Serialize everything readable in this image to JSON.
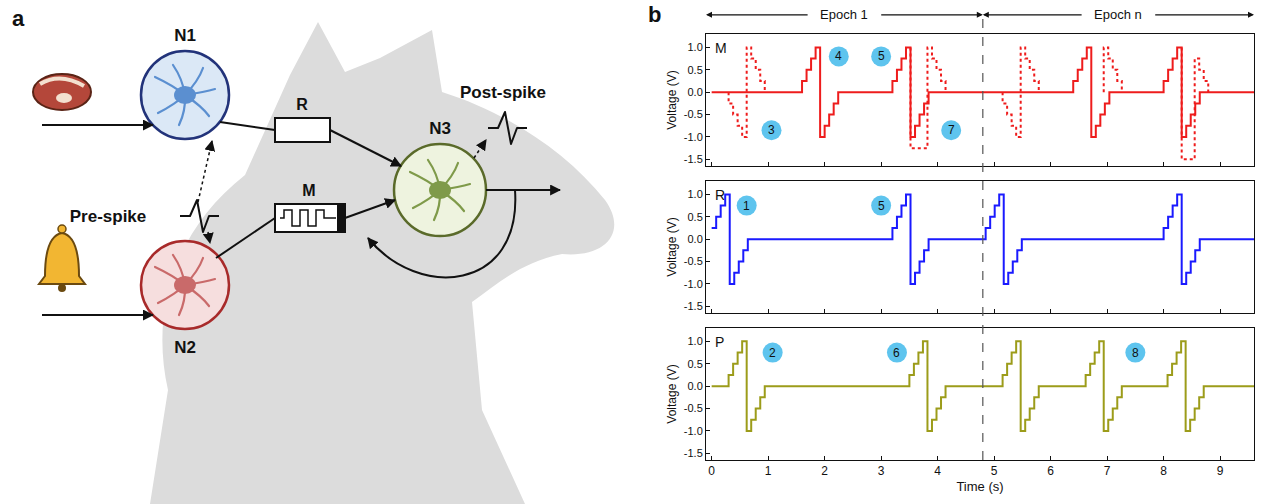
{
  "diagram": {
    "letter": "a",
    "neurons": [
      "N1",
      "N2",
      "N3"
    ],
    "synapses": [
      "R",
      "M"
    ],
    "pre_spike": "Pre-spike",
    "post_spike": "Post-spike"
  },
  "panel_b": {
    "letter": "b",
    "epochs": [
      {
        "label": "Epoch 1",
        "start": -0.1,
        "end": 4.8
      },
      {
        "label": "Epoch n",
        "start": 4.8,
        "end": 9.6
      }
    ],
    "divider": 4.8
  },
  "chart_data": [
    {
      "type": "line",
      "title": "M",
      "y_label": "Voltage (V)",
      "xlim": [
        -0.1,
        9.6
      ],
      "xticks": [
        0,
        1,
        2,
        3,
        4,
        5,
        6,
        7,
        8,
        9
      ],
      "ylim": [
        -1.65,
        1.3
      ],
      "yticks": [
        -1.5,
        {
          "value": -1,
          "label": "-1.0"
        },
        -0.5,
        {
          "value": 0,
          "label": "0.0"
        },
        0.5,
        {
          "value": 1,
          "label": "1.0"
        }
      ],
      "tick_labels": "y",
      "grid": false,
      "series": [
        {
          "color": "#ee1c1c",
          "line_style": "solid",
          "x": [
            0,
            1.6,
            1.68,
            1.76,
            1.84,
            1.92,
            2,
            2.08,
            2.16,
            2.24,
            3.2,
            3.28,
            3.36,
            3.44,
            3.52,
            3.6,
            3.68,
            3.76,
            3.84,
            6.4,
            6.48,
            6.56,
            6.64,
            6.72,
            6.8,
            6.88,
            6.96,
            7.04,
            8,
            8.08,
            8.16,
            8.24,
            8.32,
            8.4,
            8.48,
            8.56,
            8.64,
            9.6
          ],
          "values": [
            0,
            0.25,
            0.5,
            0.75,
            1,
            -1,
            -0.75,
            -0.5,
            -0.25,
            0,
            0.25,
            0.5,
            0.75,
            1,
            -1,
            -0.75,
            -0.5,
            -0.25,
            0,
            0.25,
            0.5,
            0.75,
            1,
            -1,
            -0.75,
            -0.5,
            -0.25,
            0,
            0.25,
            0.5,
            0.75,
            1,
            -1,
            -0.75,
            -0.5,
            -0.25,
            0,
            0
          ]
        },
        {
          "color": "#ee1c1c",
          "line_style": "dotted",
          "x": [
            0.3,
            0.3,
            0.38,
            0.46,
            0.54,
            0.62,
            0.7,
            0.78,
            0.86,
            0.94,
            null,
            3.52,
            3.52,
            3.82,
            3.9,
            3.98,
            4.06,
            4.14,
            null,
            5.15,
            5.15,
            5.23,
            5.31,
            5.39,
            5.47,
            5.55,
            5.63,
            5.71,
            5.79,
            null,
            6.94,
            6.94,
            7.02,
            7.1,
            7.18,
            7.26,
            null,
            8.32,
            8.32,
            8.55,
            8.63,
            8.71,
            8.79
          ],
          "values": [
            0,
            -0.25,
            -0.5,
            -0.75,
            -1,
            1,
            0.75,
            0.5,
            0.25,
            0,
            null,
            1,
            -1.25,
            1,
            0.75,
            0.5,
            0.25,
            0,
            null,
            0,
            -0.25,
            -0.5,
            -0.75,
            -1,
            1,
            0.75,
            0.5,
            0.25,
            0,
            null,
            0,
            1,
            0.75,
            0.5,
            0.25,
            0,
            null,
            1,
            -1.5,
            0.75,
            0.5,
            0.25,
            0
          ]
        }
      ],
      "annotations": [
        {
          "text": "3",
          "x": 1.06,
          "y": -0.85
        },
        {
          "text": "4",
          "x": 2.25,
          "y": 0.8
        },
        {
          "text": "5",
          "x": 3.0,
          "y": 0.8
        },
        {
          "text": "7",
          "x": 4.24,
          "y": -0.85
        }
      ]
    },
    {
      "type": "line",
      "title": "R",
      "y_label": "Voltage (V)",
      "xlim": [
        -0.1,
        9.6
      ],
      "xticks": [
        0,
        1,
        2,
        3,
        4,
        5,
        6,
        7,
        8,
        9
      ],
      "ylim": [
        -1.65,
        1.3
      ],
      "yticks": [
        -1.5,
        {
          "value": -1,
          "label": "-1.0"
        },
        -0.5,
        {
          "value": 0,
          "label": "0.0"
        },
        0.5,
        {
          "value": 1,
          "label": "1.0"
        }
      ],
      "tick_labels": "y",
      "grid": false,
      "series": [
        {
          "color": "#1a1aff",
          "line_style": "solid",
          "x": [
            0,
            0.08,
            0.16,
            0.24,
            0.32,
            0.4,
            0.48,
            0.56,
            0.64,
            3.2,
            3.28,
            3.36,
            3.44,
            3.52,
            3.6,
            3.68,
            3.76,
            3.84,
            4.85,
            4.93,
            5.01,
            5.09,
            5.17,
            5.25,
            5.33,
            5.41,
            5.49,
            8,
            8.08,
            8.16,
            8.24,
            8.32,
            8.4,
            8.48,
            8.56,
            8.64,
            9.6
          ],
          "values": [
            0.25,
            0.5,
            0.75,
            1,
            -1,
            -0.75,
            -0.5,
            -0.25,
            0,
            0.25,
            0.5,
            0.75,
            1,
            -1,
            -0.75,
            -0.5,
            -0.25,
            0,
            0.25,
            0.5,
            0.75,
            1,
            -1,
            -0.75,
            -0.5,
            -0.25,
            0,
            0.25,
            0.5,
            0.75,
            1,
            -1,
            -0.75,
            -0.5,
            -0.25,
            0,
            0
          ]
        }
      ],
      "annotations": [
        {
          "text": "1",
          "x": 0.62,
          "y": 0.75
        },
        {
          "text": "5",
          "x": 3.0,
          "y": 0.75
        }
      ]
    },
    {
      "type": "line",
      "title": "P",
      "x_label": "Time (s)",
      "y_label": "Voltage (V)",
      "xlim": [
        -0.1,
        9.6
      ],
      "xticks": [
        0,
        1,
        2,
        3,
        4,
        5,
        6,
        7,
        8,
        9
      ],
      "ylim": [
        -1.65,
        1.3
      ],
      "yticks": [
        -1.5,
        {
          "value": -1,
          "label": "-1.0"
        },
        -0.5,
        {
          "value": 0,
          "label": "0.0"
        },
        0.5,
        {
          "value": 1,
          "label": "1.0"
        }
      ],
      "grid": false,
      "series": [
        {
          "color": "#9c9c1a",
          "line_style": "solid",
          "x": [
            0,
            0.3,
            0.38,
            0.46,
            0.54,
            0.62,
            0.7,
            0.78,
            0.86,
            0.94,
            3.5,
            3.58,
            3.66,
            3.74,
            3.82,
            3.9,
            3.98,
            4.06,
            4.14,
            5.15,
            5.23,
            5.31,
            5.39,
            5.47,
            5.55,
            5.63,
            5.71,
            5.79,
            6.62,
            6.7,
            6.78,
            6.86,
            6.94,
            7.02,
            7.1,
            7.18,
            7.26,
            8.07,
            8.15,
            8.23,
            8.31,
            8.39,
            8.47,
            8.55,
            8.63,
            8.71,
            9.6
          ],
          "values": [
            0,
            0.25,
            0.5,
            0.75,
            1,
            -1,
            -0.75,
            -0.5,
            -0.25,
            0,
            0.25,
            0.5,
            0.75,
            1,
            -1,
            -0.75,
            -0.5,
            -0.25,
            0,
            0.25,
            0.5,
            0.75,
            1,
            -1,
            -0.75,
            -0.5,
            -0.25,
            0,
            0.25,
            0.5,
            0.75,
            1,
            -1,
            -0.75,
            -0.5,
            -0.25,
            0,
            0.25,
            0.5,
            0.75,
            1,
            -1,
            -0.75,
            -0.5,
            -0.25,
            0,
            0
          ]
        }
      ],
      "annotations": [
        {
          "text": "2",
          "x": 1.08,
          "y": 0.75
        },
        {
          "text": "6",
          "x": 3.28,
          "y": 0.75
        },
        {
          "text": "8",
          "x": 7.5,
          "y": 0.75
        }
      ]
    }
  ]
}
